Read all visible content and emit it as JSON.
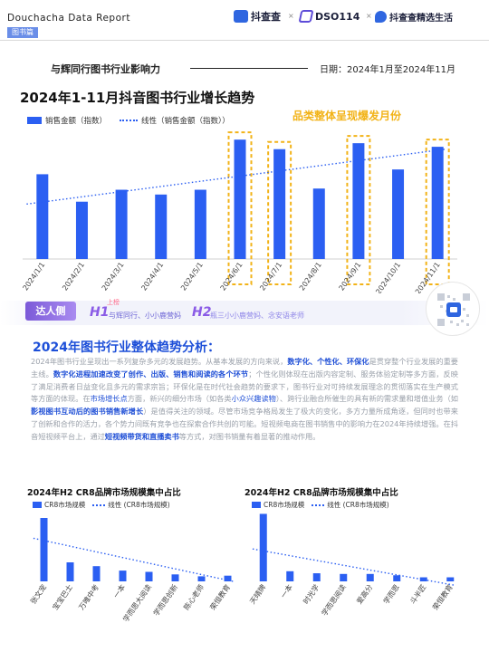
{
  "header": {
    "brand": "Douchacha  Data  Report",
    "section_tag": "图书篇",
    "logos": [
      "抖查查",
      "DSO114",
      "抖查查精选生活"
    ],
    "separator": "×"
  },
  "subheader": {
    "influence_title": "与辉同行图书行业影响力",
    "date_range": "日期：2024年1月至2024年11月"
  },
  "main_chart_section": {
    "title": "2024年1-11月抖音图书行业增长趋势",
    "legend_bar": "销售金额（指数）",
    "legend_line": "线性（销售金额（指数））",
    "highlight_note": "品类整体呈现爆发月份"
  },
  "talent": {
    "tag": "达人侧",
    "h1": "H1",
    "h1_rank": "上榜",
    "h1_names": "与辉同行、小小鹿营妈",
    "h2": "H2",
    "h2_names": "瓶三小小鹿营妈、念安语老师"
  },
  "analysis": {
    "title": "2024年图书行业整体趋势分析：",
    "p1": "2024年图书行业呈现出一系列复杂多元的发展趋势。从基本发展的方向来说，",
    "p1_hl": "数字化、个性化、环保化",
    "p1b": "是贯穿整个行业发展的重要主线。",
    "p2_hl": "数字化进程加速改变了创作、出版、销售和阅读的各个环节",
    "p2": "；个性化则体现在出版内容定制、服务体验定制等多方面，反映了满足消费者日益变化且多元的需求宗旨；环保化是在时代社会趋势的要求下，图书行业对可持续发展理念的贯彻落实在生产模式等方面的体现。在",
    "p3_hl": "市场增长点",
    "p3": "方面，新兴的细分市场（如各类",
    "p3_hl2": "小众兴趣读物",
    "p3b": "）、跨行业融合所催生的具有新的需求量和增值业务（如",
    "p4_hl": "影视图书互动后的图书销售新增长",
    "p4": "）是值得关注的领域。尽管市场竞争格局发生了极大的变化，多方力量所成角逐，但同时也带来了创新和合作的活力，各个势力间既有竞争也在探索合作共创的可能。短视频电商在图书销售中的影响力在2024年持续增强。在抖音短视频平台上，通过",
    "p5_hl": "短视频带货和直播卖书",
    "p5": "等方式，对图书销量有着显著的推动作用。"
  },
  "left_chart_section": {
    "title": "2024年H2 CR8品牌市场规模集中占比",
    "legend_bar": "CR8市场规模",
    "legend_line": "线性 (CR8市场规模)"
  },
  "right_chart_section": {
    "title": "2024年H2 CR8品牌市场规模集中占比",
    "legend_bar": "CR8市场规模",
    "legend_line": "线性 (CR8市场规模)"
  },
  "colors": {
    "bar": "#2b5ff2",
    "highlight": "#f2b318",
    "title_blue": "#1d4fd8",
    "talent_purple": "#8a5be6"
  },
  "chart_data": [
    {
      "type": "bar",
      "title": "2024年1-11月抖音图书行业增长趋势",
      "categories": [
        "2024/1/1",
        "2024/2/1",
        "2024/3/1",
        "2024/4/1",
        "2024/5/1",
        "2024/6/1",
        "2024/7/1",
        "2024/8/1",
        "2024/9/1",
        "2024/10/1",
        "2024/11/1"
      ],
      "series": [
        {
          "name": "销售金额（指数）",
          "values": [
            71,
            48,
            58,
            54,
            58,
            100,
            92,
            59,
            97,
            75,
            94
          ]
        }
      ],
      "trendline": {
        "name": "线性（销售金额（指数））",
        "start": 46,
        "end": 92
      },
      "highlighted_categories": [
        "2024/6/1",
        "2024/7/1",
        "2024/9/1",
        "2024/11/1"
      ],
      "highlight_note": "品类整体呈现爆发月份",
      "ylim": [
        0,
        110
      ],
      "grid": false,
      "legend": "top-left"
    },
    {
      "type": "bar",
      "title": "2024年H2 CR8品牌市场规模集中占比",
      "categories": [
        "张文宠",
        "宝宝巴士",
        "万唯中考",
        "一本",
        "学而思大阅读",
        "学而思创新",
        "陈心老师",
        "荣恒教育"
      ],
      "series": [
        {
          "name": "CR8市场规模",
          "values": [
            100,
            30,
            24,
            17,
            15,
            11,
            8,
            9
          ]
        }
      ],
      "trendline": {
        "name": "线性 (CR8市场规模)",
        "start": 68,
        "end": 0
      },
      "ylim": [
        0,
        110
      ],
      "grid": false,
      "legend": "top-left"
    },
    {
      "type": "bar",
      "title": "2024年H2 CR8品牌市场规模集中占比",
      "categories": [
        "天晴牌",
        "一本",
        "时光学",
        "学而思阅读",
        "爱高分",
        "学而思",
        "斗半匠",
        "荣恒教育"
      ],
      "series": [
        {
          "name": "CR8市场规模",
          "values": [
            100,
            15,
            12,
            11,
            11,
            9,
            6,
            6
          ]
        }
      ],
      "trendline": {
        "name": "线性 (CR8市场规模)",
        "start": 48,
        "end": -6
      },
      "ylim": [
        0,
        110
      ],
      "grid": false,
      "legend": "top-left"
    }
  ]
}
